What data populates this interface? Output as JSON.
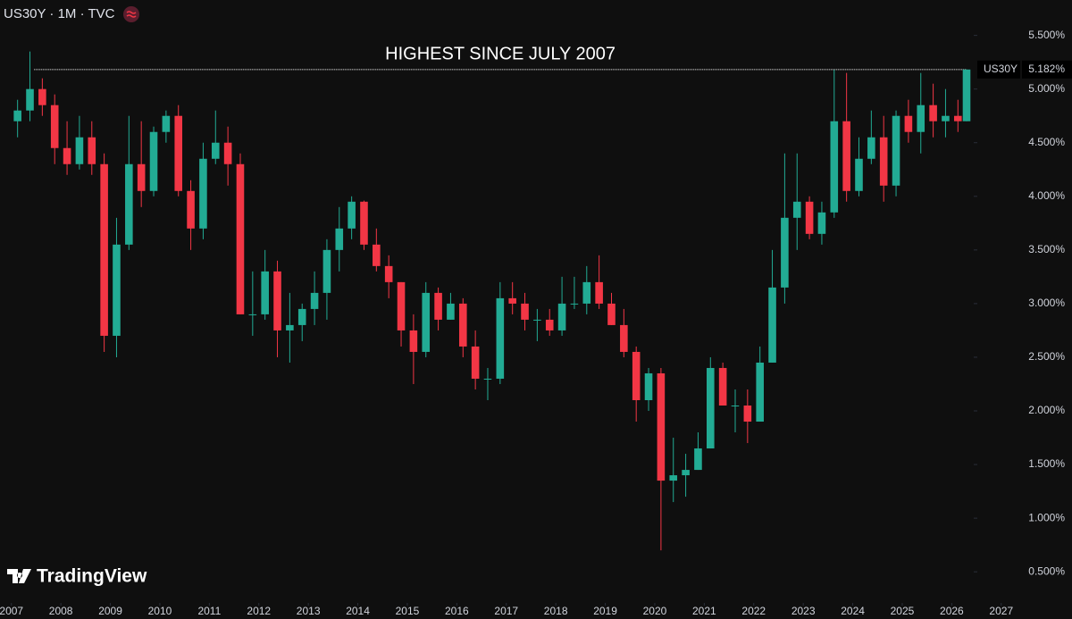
{
  "chart_data": {
    "type": "candlestick",
    "title": "US30Y · 1M · TVC",
    "brand": "TradingView",
    "up_color": "#22ab94",
    "down_color": "#f23645",
    "x": [
      2007.125,
      2007.375,
      2007.625,
      2007.875,
      2008.125,
      2008.375,
      2008.625,
      2008.875,
      2009.125,
      2009.375,
      2009.625,
      2009.875,
      2010.125,
      2010.375,
      2010.625,
      2010.875,
      2011.125,
      2011.375,
      2011.625,
      2011.875,
      2012.125,
      2012.375,
      2012.625,
      2012.875,
      2013.125,
      2013.375,
      2013.625,
      2013.875,
      2014.125,
      2014.375,
      2014.625,
      2014.875,
      2015.125,
      2015.375,
      2015.625,
      2015.875,
      2016.125,
      2016.375,
      2016.625,
      2016.875,
      2017.125,
      2017.375,
      2017.625,
      2017.875,
      2018.125,
      2018.375,
      2018.625,
      2018.875,
      2019.125,
      2019.375,
      2019.625,
      2019.875,
      2020.125,
      2020.375,
      2020.625,
      2020.875,
      2021.125,
      2021.375,
      2021.625,
      2021.875,
      2022.125,
      2022.375,
      2022.625,
      2022.875,
      2023.125,
      2023.375,
      2023.625,
      2023.875,
      2024.125,
      2024.375,
      2024.625,
      2024.875,
      2025.125,
      2025.375,
      2025.625,
      2025.875,
      2026.125,
      2026.3
    ],
    "open": [
      4.7,
      4.8,
      5.0,
      4.85,
      4.45,
      4.3,
      4.55,
      4.3,
      2.7,
      3.55,
      4.3,
      4.05,
      4.6,
      4.75,
      4.05,
      3.7,
      4.35,
      4.5,
      4.3,
      2.9,
      2.9,
      3.3,
      2.75,
      2.8,
      2.95,
      3.1,
      3.5,
      3.7,
      3.95,
      3.55,
      3.35,
      3.2,
      2.75,
      2.55,
      3.1,
      2.85,
      3.0,
      2.6,
      2.3,
      2.3,
      3.05,
      3.0,
      2.85,
      2.85,
      2.75,
      3.0,
      3.0,
      3.2,
      3.0,
      2.8,
      2.55,
      2.1,
      2.35,
      1.35,
      1.4,
      1.45,
      1.65,
      2.4,
      2.05,
      2.05,
      1.9,
      2.45,
      3.15,
      3.8,
      3.95,
      3.65,
      3.85,
      4.7,
      4.05,
      4.35,
      4.55,
      4.1,
      4.75,
      4.6,
      4.85,
      4.7,
      4.75,
      4.7
    ],
    "high": [
      4.9,
      5.35,
      5.1,
      4.95,
      4.7,
      4.75,
      4.7,
      4.4,
      3.8,
      4.75,
      4.7,
      4.65,
      4.8,
      4.85,
      4.15,
      4.5,
      4.8,
      4.65,
      4.4,
      3.3,
      3.5,
      3.4,
      3.1,
      3.0,
      3.3,
      3.6,
      3.9,
      4.0,
      3.96,
      3.7,
      3.45,
      3.2,
      2.9,
      3.2,
      3.15,
      3.1,
      3.05,
      2.75,
      2.4,
      3.2,
      3.2,
      3.1,
      2.95,
      2.95,
      3.25,
      3.25,
      3.35,
      3.45,
      3.1,
      2.95,
      2.6,
      2.4,
      2.4,
      1.75,
      1.6,
      1.8,
      2.5,
      2.45,
      2.2,
      2.2,
      2.6,
      3.5,
      4.4,
      4.4,
      4.0,
      3.95,
      5.18,
      5.15,
      4.55,
      4.8,
      4.75,
      4.8,
      4.9,
      5.15,
      5.05,
      5.0,
      4.9,
      5.182
    ],
    "low": [
      4.55,
      4.7,
      4.75,
      4.3,
      4.2,
      4.25,
      4.2,
      2.55,
      2.5,
      3.5,
      3.9,
      4.0,
      4.5,
      4.0,
      3.5,
      3.6,
      4.3,
      4.1,
      2.9,
      2.7,
      2.85,
      2.5,
      2.45,
      2.65,
      2.8,
      2.85,
      3.3,
      3.6,
      3.5,
      3.3,
      3.05,
      2.6,
      2.25,
      2.5,
      2.75,
      2.85,
      2.5,
      2.2,
      2.1,
      2.25,
      2.9,
      2.75,
      2.65,
      2.7,
      2.7,
      2.95,
      2.9,
      2.95,
      2.8,
      2.5,
      1.9,
      2.0,
      0.7,
      1.15,
      1.2,
      1.45,
      1.65,
      2.05,
      1.8,
      1.7,
      1.9,
      2.45,
      3.0,
      3.5,
      3.6,
      3.55,
      3.8,
      3.95,
      4.0,
      4.3,
      3.95,
      4.0,
      4.5,
      4.4,
      4.55,
      4.55,
      4.6,
      4.7
    ],
    "close": [
      4.8,
      5.0,
      4.85,
      4.45,
      4.3,
      4.55,
      4.3,
      2.7,
      3.55,
      4.3,
      4.05,
      4.6,
      4.75,
      4.05,
      3.7,
      4.35,
      4.5,
      4.3,
      2.9,
      2.9,
      3.3,
      2.75,
      2.8,
      2.95,
      3.1,
      3.5,
      3.7,
      3.95,
      3.55,
      3.35,
      3.2,
      2.75,
      2.55,
      3.1,
      2.85,
      3.0,
      2.6,
      2.3,
      2.3,
      3.05,
      3.0,
      2.85,
      2.85,
      2.75,
      3.0,
      3.0,
      3.2,
      3.0,
      2.8,
      2.55,
      2.1,
      2.35,
      1.35,
      1.4,
      1.45,
      1.65,
      2.4,
      2.05,
      2.05,
      1.9,
      2.45,
      3.15,
      3.8,
      3.95,
      3.65,
      3.85,
      4.7,
      4.05,
      4.35,
      4.55,
      4.1,
      4.75,
      4.6,
      4.85,
      4.7,
      4.75,
      4.7,
      5.182
    ],
    "xlim": [
      2006.77,
      2028.43
    ],
    "xticks": [
      2007,
      2008,
      2009,
      2010,
      2011,
      2012,
      2013,
      2014,
      2015,
      2016,
      2017,
      2018,
      2019,
      2020,
      2021,
      2022,
      2023,
      2024,
      2025,
      2026,
      2027
    ],
    "ylim": [
      0.21,
      5.83
    ],
    "yticks": [
      {
        "value": 0.5,
        "label": "0.500%"
      },
      {
        "value": 1.0,
        "label": "1.000%"
      },
      {
        "value": 1.5,
        "label": "1.500%"
      },
      {
        "value": 2.0,
        "label": "2.000%"
      },
      {
        "value": 2.5,
        "label": "2.500%"
      },
      {
        "value": 3.0,
        "label": "3.000%"
      },
      {
        "value": 3.5,
        "label": "3.500%"
      },
      {
        "value": 4.0,
        "label": "4.000%"
      },
      {
        "value": 4.5,
        "label": "4.500%"
      },
      {
        "value": 5.0,
        "label": "5.000%"
      },
      {
        "value": 5.5,
        "label": "5.500%"
      }
    ],
    "last_price": {
      "symbol": "US30Y",
      "value": 5.182,
      "label": "5.182%"
    },
    "annotation": {
      "text": "HIGHEST SINCE JULY 2007",
      "y": 5.182,
      "x": [
        2007.46,
        2026.3
      ]
    }
  }
}
